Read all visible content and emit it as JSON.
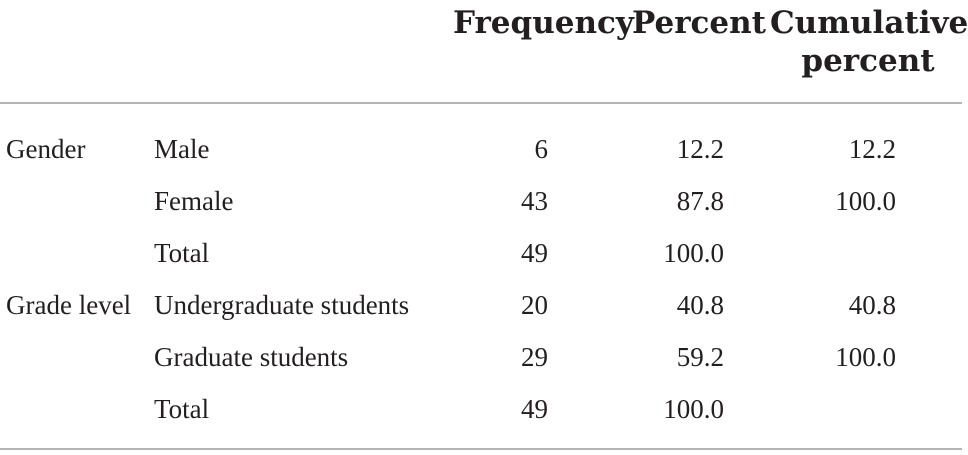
{
  "table": {
    "headers": {
      "frequency": "Frequency",
      "percent": "Percent",
      "cumulative_line1": "Cumulative",
      "cumulative_line2": "percent"
    },
    "rows": [
      {
        "group": "Gender",
        "category": "Male",
        "frequency": "6",
        "percent": "12.2",
        "cumulative": "12.2"
      },
      {
        "group": "",
        "category": "Female",
        "frequency": "43",
        "percent": "87.8",
        "cumulative": "100.0"
      },
      {
        "group": "",
        "category": "Total",
        "frequency": "49",
        "percent": "100.0",
        "cumulative": ""
      },
      {
        "group": "Grade level",
        "category": "Undergraduate students",
        "frequency": "20",
        "percent": "40.8",
        "cumulative": "40.8"
      },
      {
        "group": "",
        "category": "Graduate students",
        "frequency": "29",
        "percent": "59.2",
        "cumulative": "100.0"
      },
      {
        "group": "",
        "category": "Total",
        "frequency": "49",
        "percent": "100.0",
        "cumulative": ""
      }
    ]
  }
}
